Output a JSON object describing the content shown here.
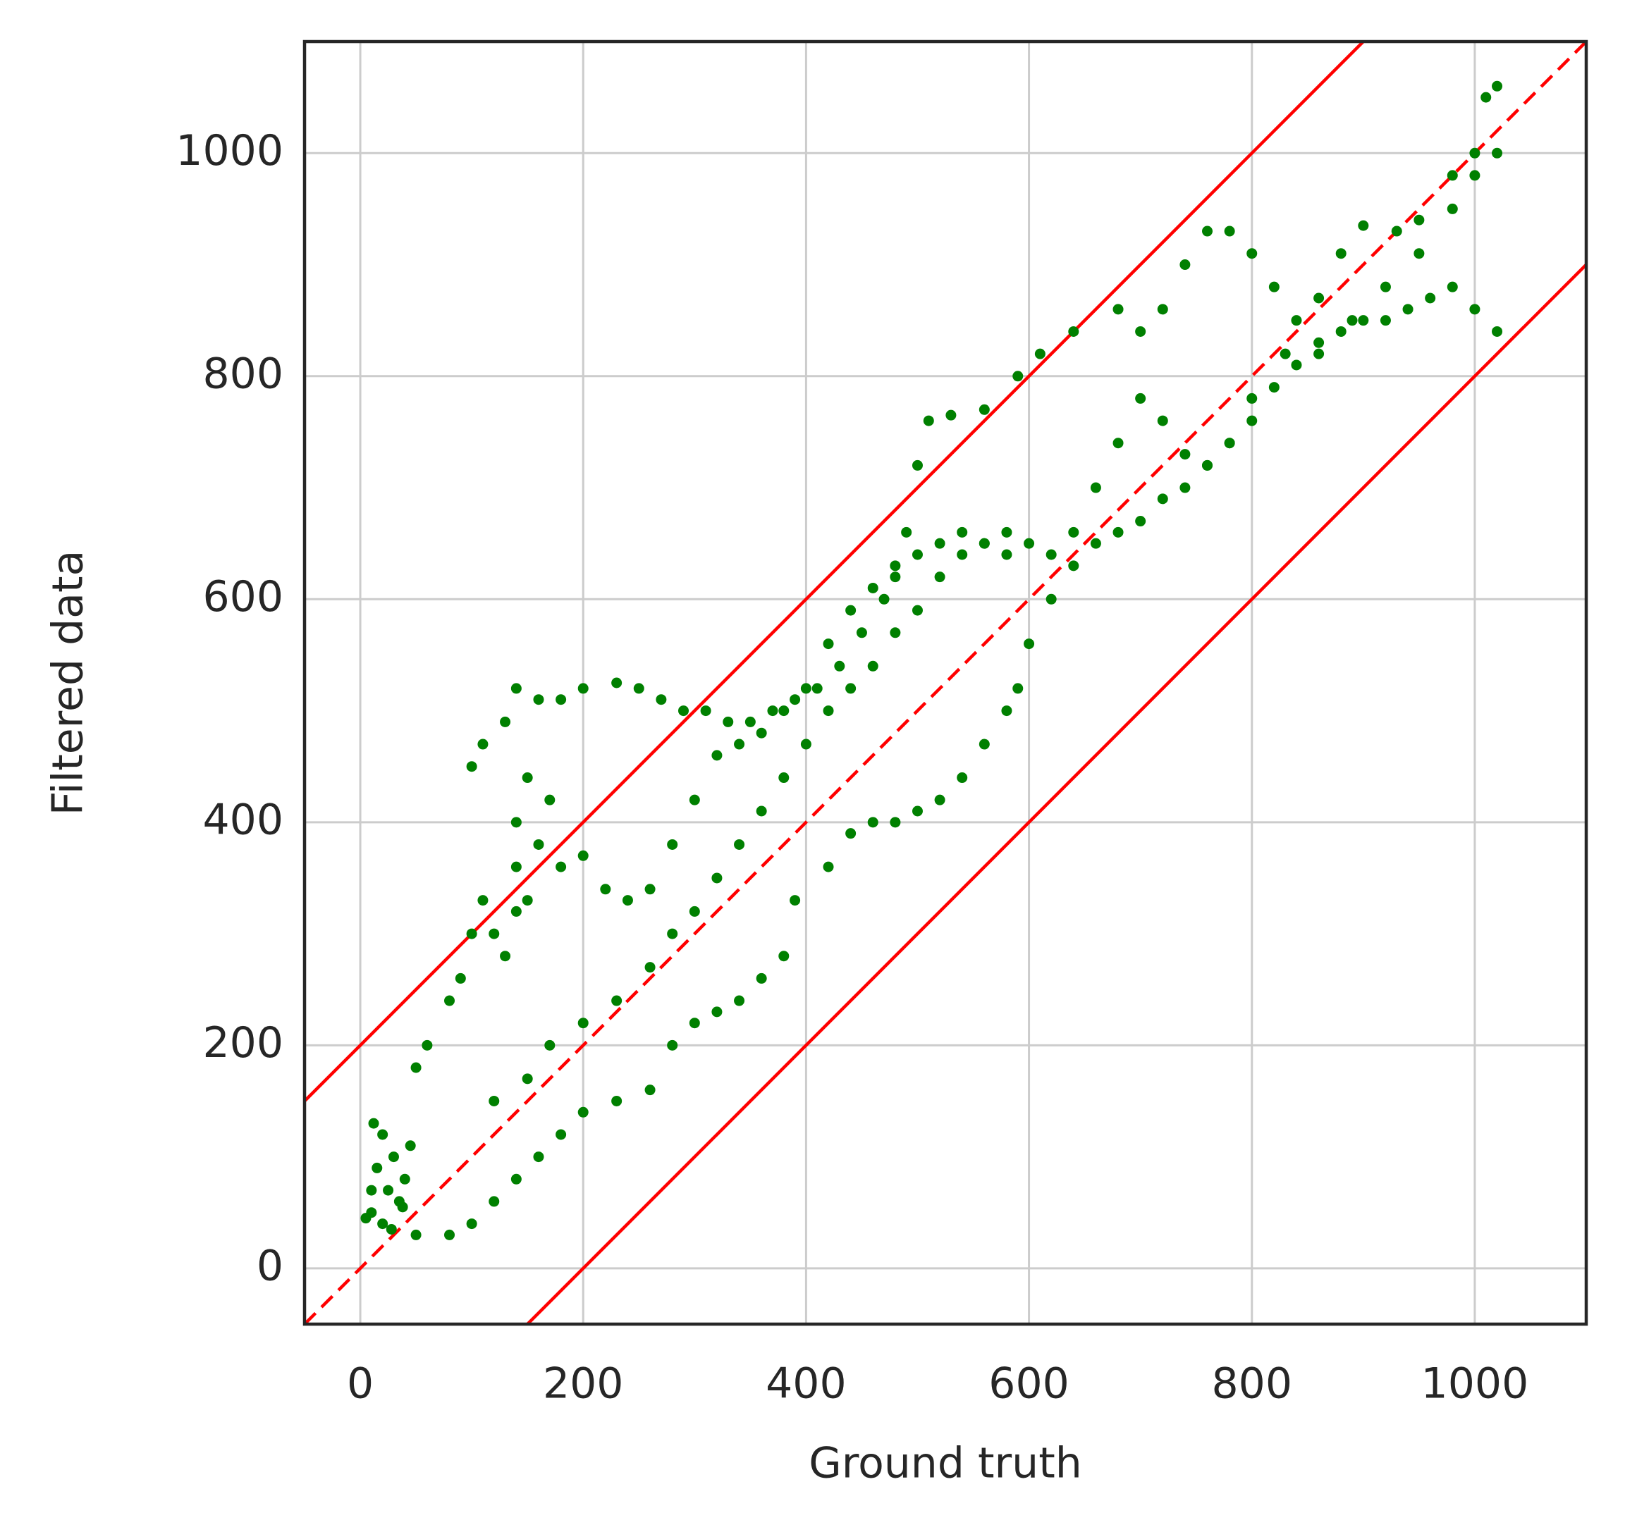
{
  "chart_data": {
    "type": "scatter",
    "xlabel": "Ground truth",
    "ylabel": "Filtered data",
    "xlim": [
      -50,
      1100
    ],
    "ylim": [
      -50,
      1100
    ],
    "xticks": [
      0,
      200,
      400,
      600,
      800,
      1000
    ],
    "yticks": [
      0,
      200,
      400,
      600,
      800,
      1000
    ],
    "grid": true,
    "color": "green",
    "x": [
      10,
      15,
      20,
      25,
      30,
      20,
      35,
      40,
      45,
      10,
      5,
      12,
      28,
      38,
      50,
      60,
      80,
      90,
      100,
      110,
      120,
      130,
      140,
      150,
      140,
      50,
      80,
      100,
      120,
      140,
      160,
      180,
      200,
      230,
      260,
      280,
      300,
      320,
      340,
      360,
      380,
      390,
      420,
      440,
      460,
      480,
      500,
      520,
      540,
      560,
      580,
      590,
      600,
      620,
      640,
      660,
      680,
      700,
      720,
      740,
      760,
      780,
      800,
      820,
      840,
      860,
      880,
      900,
      920,
      940,
      960,
      980,
      1000,
      1020,
      100,
      110,
      130,
      140,
      160,
      180,
      200,
      230,
      250,
      270,
      290,
      310,
      330,
      350,
      370,
      390,
      410,
      430,
      450,
      470,
      480,
      490,
      500,
      510,
      530,
      560,
      590,
      610,
      640,
      680,
      700,
      720,
      740,
      760,
      780,
      800,
      820,
      840,
      860,
      880,
      900,
      930,
      950,
      980,
      1000,
      1010,
      1020,
      120,
      150,
      170,
      200,
      230,
      260,
      280,
      300,
      320,
      340,
      360,
      380,
      400,
      420,
      440,
      460,
      480,
      500,
      520,
      540,
      560,
      580,
      600,
      620,
      640,
      660,
      680,
      700,
      720,
      740,
      760,
      780,
      800,
      830,
      860,
      890,
      920,
      950,
      980,
      1000,
      1020,
      170,
      150,
      140,
      160,
      180,
      200,
      220,
      240,
      260,
      280,
      300,
      320,
      340,
      360,
      380,
      400,
      420,
      440,
      460,
      480,
      500,
      520,
      540,
      560,
      580
    ],
    "values": [
      50,
      90,
      120,
      70,
      100,
      40,
      60,
      80,
      110,
      70,
      45,
      130,
      35,
      55,
      180,
      200,
      240,
      260,
      300,
      330,
      300,
      280,
      320,
      330,
      360,
      30,
      30,
      40,
      60,
      80,
      100,
      120,
      140,
      150,
      160,
      200,
      220,
      230,
      240,
      260,
      280,
      330,
      360,
      390,
      400,
      400,
      410,
      420,
      440,
      470,
      500,
      520,
      560,
      600,
      630,
      650,
      660,
      670,
      690,
      700,
      720,
      740,
      760,
      790,
      810,
      820,
      840,
      850,
      850,
      860,
      870,
      880,
      860,
      840,
      450,
      470,
      490,
      520,
      510,
      510,
      520,
      525,
      520,
      510,
      500,
      500,
      490,
      490,
      500,
      510,
      520,
      540,
      570,
      600,
      620,
      660,
      720,
      760,
      765,
      770,
      800,
      820,
      840,
      860,
      840,
      860,
      900,
      930,
      930,
      910,
      880,
      850,
      870,
      910,
      935,
      930,
      940,
      980,
      1000,
      1050,
      1060,
      150,
      170,
      200,
      220,
      240,
      270,
      300,
      320,
      350,
      380,
      410,
      440,
      470,
      500,
      520,
      540,
      570,
      590,
      620,
      640,
      650,
      660,
      650,
      640,
      660,
      700,
      740,
      780,
      760,
      730,
      720,
      740,
      780,
      820,
      830,
      850,
      880,
      910,
      950,
      980,
      1000,
      420,
      440,
      400,
      380,
      360,
      370,
      340,
      330,
      340,
      380,
      420,
      460,
      470,
      480,
      500,
      520,
      560,
      590,
      610,
      630,
      640,
      650,
      660,
      650,
      640
    ],
    "lines": [
      {
        "slope": 1,
        "intercept": 0,
        "dashed": true,
        "color": "red"
      },
      {
        "slope": 1,
        "intercept": 200,
        "dashed": false,
        "color": "red"
      },
      {
        "slope": 1,
        "intercept": -200,
        "dashed": false,
        "color": "red"
      }
    ]
  }
}
